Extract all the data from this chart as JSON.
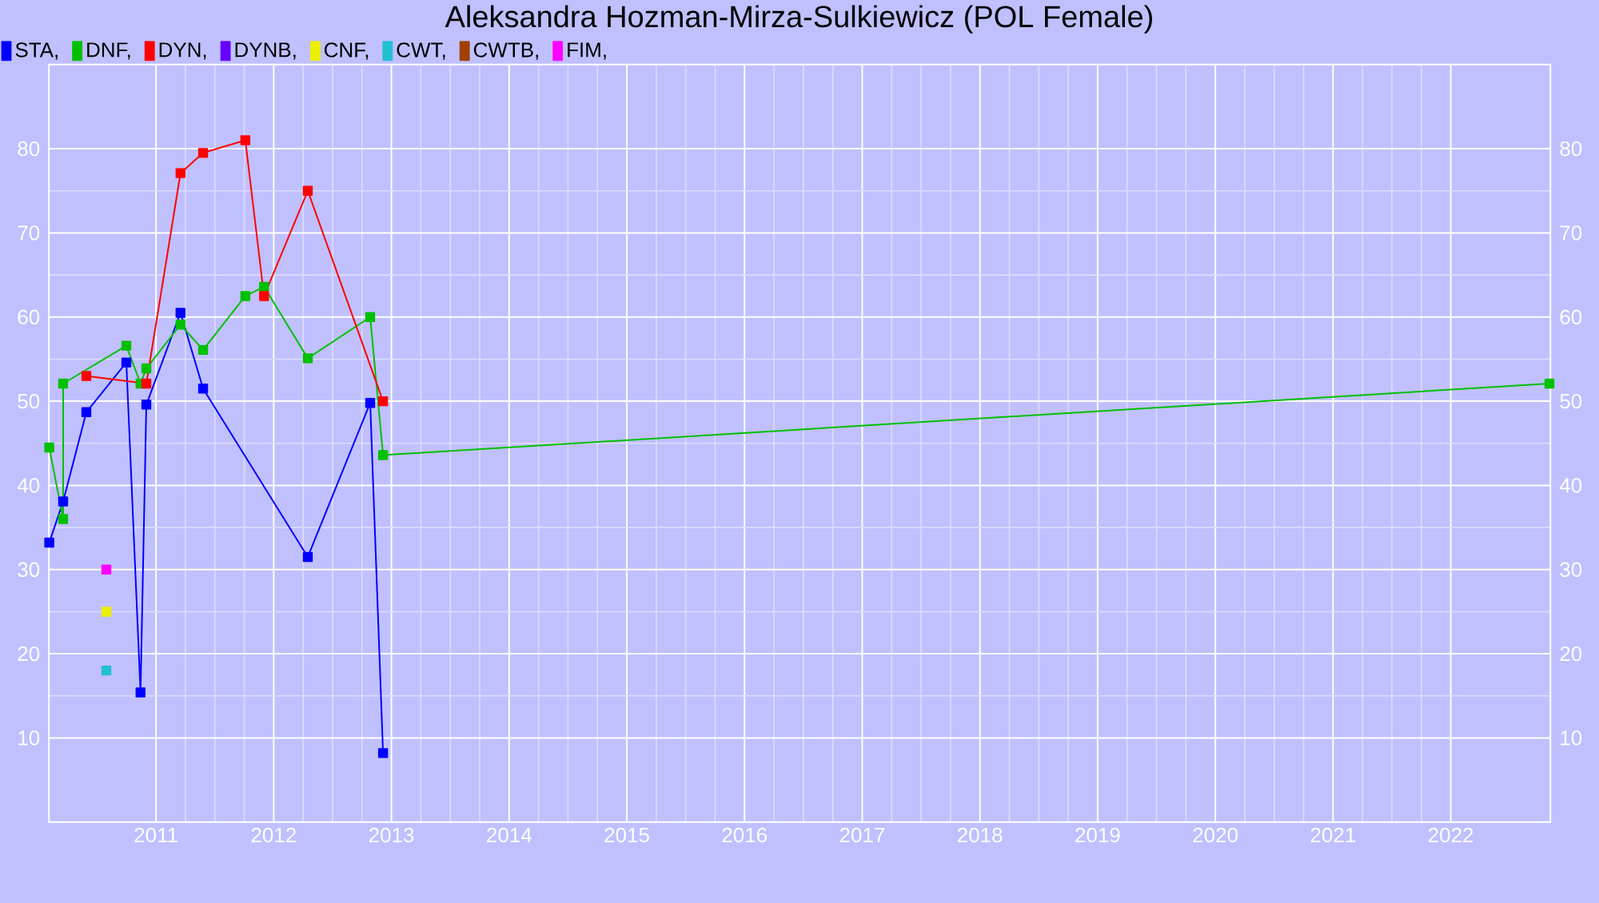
{
  "chart_data": {
    "type": "line",
    "title": "Aleksandra Hozman-Mirza-Sulkiewicz (POL Female)",
    "xlim": [
      "2010-02-03",
      "2022-11-06"
    ],
    "xticks": [
      "2011",
      "2012",
      "2013",
      "2014",
      "2015",
      "2016",
      "2017",
      "2018",
      "2019",
      "2020",
      "2021",
      "2022"
    ],
    "ylim": [
      0,
      90
    ],
    "yticks": [
      10,
      20,
      30,
      40,
      50,
      60,
      70,
      80
    ],
    "y2lim": [
      0,
      90
    ],
    "y2ticks": [
      10,
      20,
      30,
      40,
      50,
      60,
      70,
      80
    ],
    "grid": true,
    "legend": "top left",
    "marker": "square",
    "line_style": "solid",
    "series": [
      {
        "name": "STA,",
        "color": "#0000ff",
        "x": [
          "2010-02-04",
          "2010-03-19",
          "2010-05-30",
          "2010-10-01",
          "2010-11-14",
          "2010-12-02",
          "2011-03-18",
          "2011-05-27",
          "2012-04-16",
          "2012-10-27",
          "2012-12-06"
        ],
        "values": [
          33.2,
          38.1,
          48.7,
          54.6,
          15.4,
          49.6,
          60.5,
          51.5,
          31.5,
          49.8,
          8.2
        ]
      },
      {
        "name": "DNF,",
        "color": "#00c000",
        "x": [
          "2010-02-04",
          "2010-03-19",
          "2010-03-19",
          "2010-10-01",
          "2010-11-14",
          "2010-12-02",
          "2011-03-18",
          "2011-05-27",
          "2011-10-05",
          "2011-12-02",
          "2012-04-16",
          "2012-10-27",
          "2012-12-06",
          "2022-11-03"
        ],
        "values": [
          44.5,
          36,
          52.1,
          56.6,
          52.1,
          53.9,
          59.1,
          56.1,
          62.5,
          63.6,
          55.1,
          60,
          43.6,
          52.1
        ]
      },
      {
        "name": "DYN,",
        "color": "#ff0000",
        "x": [
          "2010-05-30",
          "2010-12-02",
          "2011-03-18",
          "2011-05-27",
          "2011-10-05",
          "2011-12-02",
          "2012-04-16",
          "2012-12-06"
        ],
        "values": [
          53,
          52.1,
          77.1,
          79.5,
          81,
          62.5,
          75,
          50
        ]
      },
      {
        "name": "DYNB,",
        "color": "#6600ff"
      },
      {
        "name": "CNF,",
        "color": "#eeee00",
        "x": [
          "2010-07-31"
        ],
        "values": [
          25
        ]
      },
      {
        "name": "CWT,",
        "color": "#20c0d0",
        "x": [
          "2010-07-31"
        ],
        "values": [
          18
        ]
      },
      {
        "name": "CWTB,",
        "color": "#a04000"
      },
      {
        "name": "FIM,",
        "color": "#ff00ff",
        "x": [
          "2010-07-31"
        ],
        "values": [
          30
        ]
      }
    ]
  }
}
